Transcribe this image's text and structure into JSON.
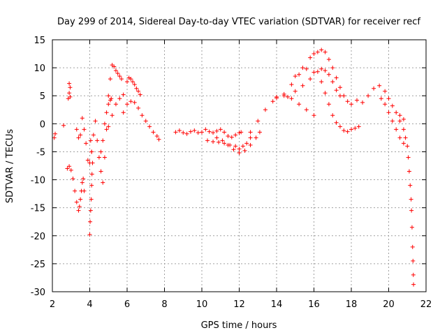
{
  "chart_data": {
    "type": "scatter",
    "title": "Day 299 of 2014, Sidereal Day-to-day VTEC variation (SDTVAR) for receiver recf",
    "xlabel": "GPS time / hours",
    "ylabel": "SDTVAR / TECUs",
    "xlim": [
      2,
      22
    ],
    "ylim": [
      -30,
      15
    ],
    "xticks": [
      2,
      4,
      6,
      8,
      10,
      12,
      14,
      16,
      18,
      20,
      22
    ],
    "yticks": [
      -30,
      -25,
      -20,
      -15,
      -10,
      -5,
      0,
      5,
      10,
      15
    ],
    "grid": true,
    "marker": "+",
    "color": "#ff0000",
    "series": [
      {
        "name": "s1",
        "x": [
          2.1,
          2.15
        ],
        "y": [
          -2.5,
          -1.8
        ]
      },
      {
        "name": "s2",
        "x": [
          2.6
        ],
        "y": [
          -0.3
        ]
      },
      {
        "name": "s3",
        "x": [
          2.85,
          2.9,
          2.95,
          2.9,
          2.95
        ],
        "y": [
          4.5,
          5.5,
          6.5,
          7.2,
          4.8
        ]
      },
      {
        "name": "s4",
        "x": [
          2.8,
          2.9,
          3.0,
          3.1,
          3.2,
          3.3,
          3.4,
          3.45,
          3.5,
          3.55,
          3.6,
          3.65,
          3.7
        ],
        "y": [
          -8.0,
          -7.6,
          -8.3,
          -9.8,
          -12.0,
          -14.0,
          -15.5,
          -14.8,
          -13.5,
          -12.0,
          -10.5,
          -9.8,
          -12.0
        ]
      },
      {
        "name": "s5",
        "x": [
          3.3,
          3.4,
          3.5,
          3.6,
          3.7,
          3.8,
          3.9
        ],
        "y": [
          -1.0,
          -2.5,
          -2.0,
          1.0,
          -1.0,
          -3.5,
          -6.5
        ]
      },
      {
        "name": "s6",
        "x": [
          4.0,
          4.02,
          4.05,
          4.08,
          4.1,
          4.12,
          4.15,
          4.1,
          4.05
        ],
        "y": [
          -19.8,
          -17.5,
          -15.5,
          -13.5,
          -11.0,
          -9.0,
          -7.0,
          -5.0,
          -3.0
        ]
      },
      {
        "name": "s7",
        "x": [
          4.0,
          4.1,
          4.2,
          4.3,
          4.4,
          4.5,
          4.6,
          4.7,
          4.8,
          4.9
        ],
        "y": [
          -7.0,
          -5.0,
          -2.0,
          0.5,
          -3.0,
          -6.0,
          -8.5,
          -10.5,
          -6.0,
          -1.0
        ]
      },
      {
        "name": "s8",
        "x": [
          4.6,
          4.7,
          4.8,
          4.9,
          5.0,
          5.1,
          5.15
        ],
        "y": [
          -5.0,
          -3.0,
          0.0,
          2.0,
          3.5,
          4.2,
          4.5
        ]
      },
      {
        "name": "s9",
        "x": [
          5.0,
          5.1,
          5.2,
          5.3,
          5.4,
          5.5,
          5.6,
          5.7
        ],
        "y": [
          5.0,
          8.0,
          10.5,
          10.2,
          9.5,
          9.0,
          8.5,
          8.0
        ]
      },
      {
        "name": "s10",
        "x": [
          5.0,
          5.2,
          5.4,
          5.6,
          5.8,
          6.0,
          6.1,
          6.2,
          6.3,
          6.4,
          6.5,
          6.6,
          6.7
        ],
        "y": [
          -0.5,
          1.5,
          3.5,
          4.5,
          5.2,
          7.5,
          8.2,
          8.0,
          7.5,
          7.0,
          6.3,
          5.8,
          5.2
        ]
      },
      {
        "name": "s11",
        "x": [
          5.8,
          6.0,
          6.2,
          6.4,
          6.6,
          6.8,
          7.0,
          7.2,
          7.4,
          7.6,
          7.7
        ],
        "y": [
          2.0,
          3.5,
          4.0,
          3.8,
          2.8,
          1.5,
          0.5,
          -0.5,
          -1.5,
          -2.2,
          -2.8
        ]
      },
      {
        "name": "s12",
        "x": [
          8.6,
          8.8,
          9.0,
          9.2,
          9.4,
          9.6,
          9.8,
          10.0,
          10.2,
          10.4,
          10.6,
          10.8,
          11.0,
          11.2,
          11.4,
          11.6,
          11.8,
          12.0,
          12.1
        ],
        "y": [
          -1.5,
          -1.2,
          -1.6,
          -1.8,
          -1.4,
          -1.2,
          -1.6,
          -1.5,
          -1.0,
          -1.4,
          -1.6,
          -1.3,
          -1.0,
          -1.5,
          -2.2,
          -2.4,
          -2.0,
          -1.6,
          -1.5
        ]
      },
      {
        "name": "s13",
        "x": [
          10.3,
          10.6,
          10.9,
          11.2,
          11.5,
          11.8,
          12.0,
          12.2,
          12.4,
          12.6
        ],
        "y": [
          -3.0,
          -3.2,
          -3.3,
          -3.5,
          -3.8,
          -4.0,
          -4.5,
          -4.0,
          -3.5,
          -2.5
        ]
      },
      {
        "name": "s14",
        "x": [
          10.8,
          11.1,
          11.4,
          11.7,
          12.0,
          12.3,
          12.6,
          12.9,
          13.1
        ],
        "y": [
          -2.5,
          -3.0,
          -3.8,
          -4.6,
          -5.2,
          -4.8,
          -3.8,
          -2.5,
          -1.5
        ]
      },
      {
        "name": "s15",
        "x": [
          12.6,
          13.0,
          13.4,
          13.8,
          14.0,
          14.4,
          14.8,
          15.2,
          15.6,
          16.0,
          16.4,
          16.6,
          16.8,
          17.0,
          17.2,
          17.4,
          17.6,
          17.8,
          18.0,
          18.2,
          18.4
        ],
        "y": [
          -1.5,
          0.5,
          2.5,
          4.0,
          4.6,
          5.3,
          7.0,
          8.8,
          9.8,
          9.2,
          7.5,
          5.5,
          3.5,
          1.5,
          0.2,
          -0.5,
          -1.2,
          -1.4,
          -1.0,
          -0.8,
          -0.5
        ]
      },
      {
        "name": "s16",
        "x": [
          14.6,
          15.0,
          15.4,
          15.8,
          16.2,
          16.4,
          16.6,
          16.8,
          17.0,
          17.2,
          17.4
        ],
        "y": [
          4.8,
          5.8,
          6.8,
          8.0,
          9.3,
          9.8,
          9.5,
          8.8,
          7.5,
          6.0,
          5.0
        ]
      },
      {
        "name": "s17",
        "x": [
          15.0,
          15.4,
          15.8,
          16.0,
          16.2,
          16.4,
          16.6,
          16.8,
          17.0,
          17.2,
          17.4,
          17.6
        ],
        "y": [
          8.5,
          10.0,
          11.8,
          12.5,
          12.8,
          13.2,
          12.8,
          11.5,
          10.0,
          8.2,
          6.5,
          5.0
        ]
      },
      {
        "name": "s18",
        "x": [
          14.0,
          14.4,
          14.8,
          15.2,
          15.6,
          16.0
        ],
        "y": [
          4.8,
          5.0,
          4.5,
          3.5,
          2.5,
          1.5
        ]
      },
      {
        "name": "s19",
        "x": [
          17.8,
          18.0,
          18.3,
          18.6,
          18.9,
          19.2,
          19.5,
          19.8,
          20.0,
          20.2,
          20.4,
          20.6,
          20.8
        ],
        "y": [
          4.0,
          3.5,
          4.2,
          3.8,
          5.0,
          6.3,
          6.8,
          5.8,
          4.5,
          3.2,
          2.0,
          1.5,
          0.8
        ]
      },
      {
        "name": "s20",
        "x": [
          19.6,
          19.8,
          20.0,
          20.2,
          20.4,
          20.6,
          20.8
        ],
        "y": [
          4.5,
          3.5,
          2.0,
          0.5,
          -1.0,
          -2.5,
          -3.5
        ]
      },
      {
        "name": "s21",
        "x": [
          20.6,
          20.8,
          20.9,
          21.0,
          21.05,
          21.1,
          21.15,
          21.2,
          21.22,
          21.25,
          21.28,
          21.3,
          21.32,
          21.33
        ],
        "y": [
          0.5,
          -1.0,
          -2.5,
          -4.0,
          -6.0,
          -8.5,
          -11.0,
          -13.5,
          -15.5,
          -18.5,
          -22.0,
          -24.5,
          -27.0,
          -28.7
        ]
      }
    ]
  }
}
